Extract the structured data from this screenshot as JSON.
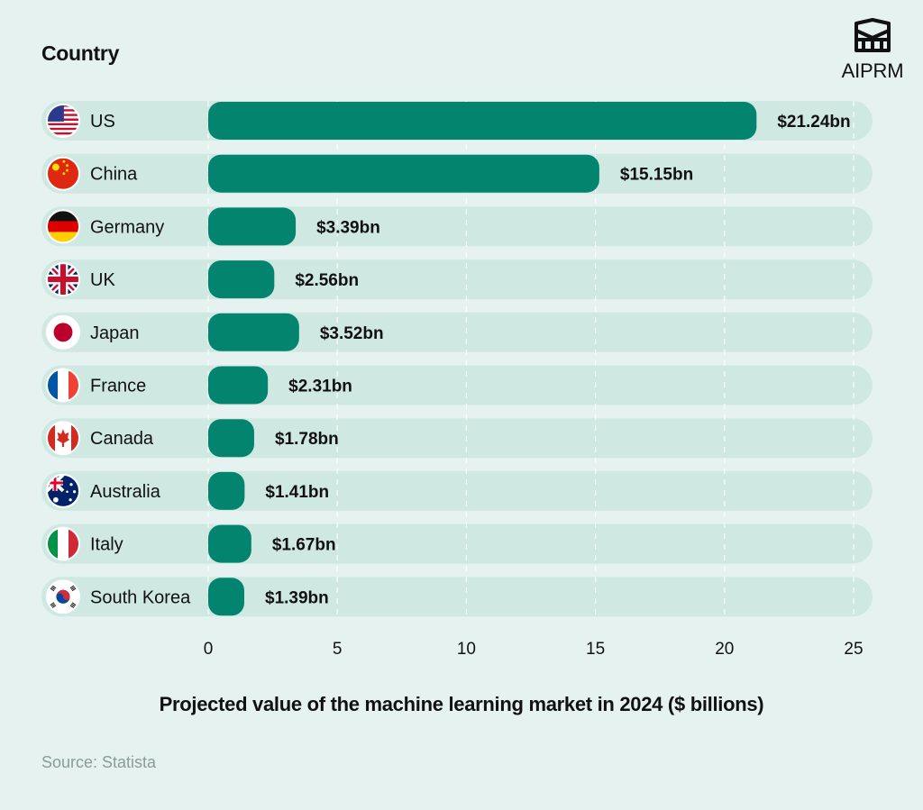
{
  "header": {
    "brand": "AIPRM"
  },
  "footer": {
    "source": "Source: Statista"
  },
  "colors": {
    "background": "#e6f2ef",
    "track": "#cfe8e1",
    "bar": "#03846f",
    "grid": "#ffffff"
  },
  "chart_data": {
    "type": "bar",
    "orientation": "horizontal",
    "ylabel": "Country",
    "xlabel": "Projected value of the machine learning market in 2024 ($ billions)",
    "categories": [
      "US",
      "China",
      "Germany",
      "UK",
      "Japan",
      "France",
      "Canada",
      "Australia",
      "Italy",
      "South Korea"
    ],
    "values": [
      21.24,
      15.15,
      3.39,
      2.56,
      3.52,
      2.31,
      1.78,
      1.41,
      1.67,
      1.39
    ],
    "data_labels": [
      "$21.24bn",
      "$15.15bn",
      "$3.39bn",
      "$2.56bn",
      "$3.52bn",
      "$2.31bn",
      "$1.78bn",
      "$1.41bn",
      "$1.67bn",
      "$1.39bn"
    ],
    "flags": [
      "us-flag-icon",
      "china-flag-icon",
      "germany-flag-icon",
      "uk-flag-icon",
      "japan-flag-icon",
      "france-flag-icon",
      "canada-flag-icon",
      "australia-flag-icon",
      "italy-flag-icon",
      "south-korea-flag-icon"
    ],
    "xlim": [
      0,
      25
    ],
    "xticks": [
      "0",
      "5",
      "10",
      "15",
      "20",
      "25"
    ],
    "grid": "vertical dashed"
  }
}
